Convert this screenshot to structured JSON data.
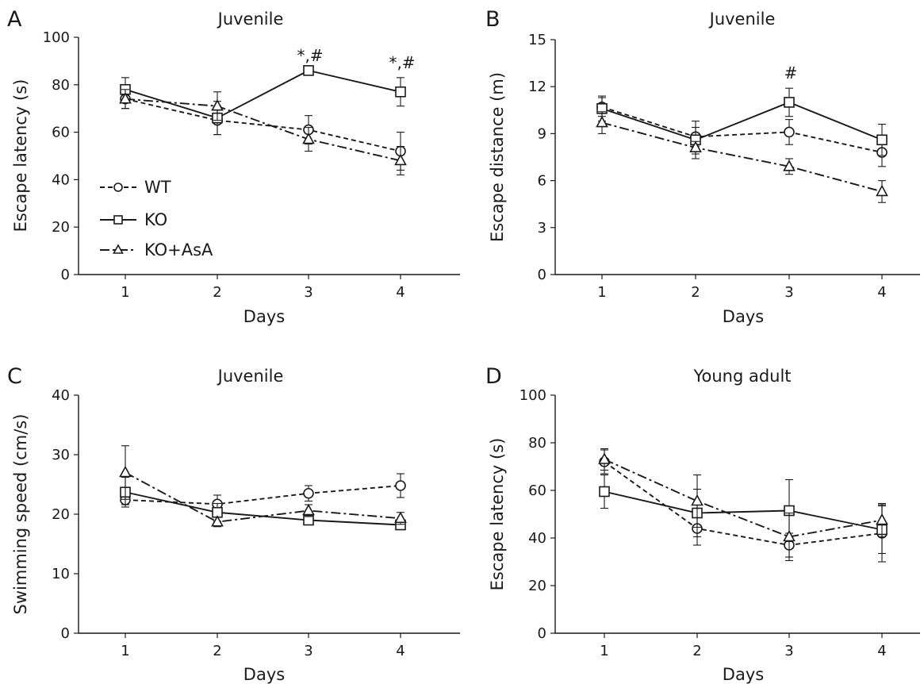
{
  "figure": {
    "legend": {
      "entries": [
        {
          "label": "WT",
          "marker": "circle",
          "dash": "dashed"
        },
        {
          "label": "KO",
          "marker": "square",
          "dash": "solid"
        },
        {
          "label": "KO+AsA",
          "marker": "triangle",
          "dash": "dashdot"
        }
      ],
      "placement": "lower-left of panel A"
    }
  },
  "chart_data": [
    {
      "type": "line",
      "panel": "A",
      "title": "Juvenile",
      "xlabel": "Days",
      "ylabel": "Escape latency (s)",
      "x": [
        1,
        2,
        3,
        4
      ],
      "xticks": [
        "1",
        "2",
        "3",
        "4"
      ],
      "ylim": [
        0,
        100
      ],
      "yticks": [
        "0",
        "20",
        "40",
        "60",
        "80",
        "100"
      ],
      "grid": false,
      "series": [
        {
          "name": "WT",
          "marker": "circle",
          "dash": "dashed",
          "values": [
            74,
            65,
            61,
            52
          ],
          "errors": [
            4,
            6,
            6,
            8
          ]
        },
        {
          "name": "KO",
          "marker": "square",
          "dash": "solid",
          "values": [
            78,
            66,
            86,
            77
          ],
          "errors": [
            5,
            7,
            0,
            6
          ]
        },
        {
          "name": "KO+AsA",
          "marker": "triangle",
          "dash": "dashdot",
          "values": [
            74,
            71,
            57,
            48
          ],
          "errors": [
            4,
            6,
            5,
            6
          ]
        }
      ],
      "annotations": [
        {
          "x": 3,
          "text": "*,#"
        },
        {
          "x": 4,
          "text": "*,#"
        }
      ]
    },
    {
      "type": "line",
      "panel": "B",
      "title": "Juvenile",
      "xlabel": "Days",
      "ylabel": "Escape distance (m)",
      "x": [
        1,
        2,
        3,
        4
      ],
      "xticks": [
        "1",
        "2",
        "3",
        "4"
      ],
      "ylim": [
        0,
        15
      ],
      "yticks": [
        "0",
        "3",
        "6",
        "9",
        "12",
        "15"
      ],
      "grid": false,
      "series": [
        {
          "name": "WT",
          "marker": "circle",
          "dash": "dashed",
          "values": [
            10.7,
            8.8,
            9.1,
            7.8
          ],
          "errors": [
            0.6,
            0.6,
            0.8,
            0.9
          ]
        },
        {
          "name": "KO",
          "marker": "square",
          "dash": "solid",
          "values": [
            10.6,
            8.6,
            11.0,
            8.6
          ],
          "errors": [
            0.8,
            1.2,
            0.9,
            1.0
          ]
        },
        {
          "name": "KO+AsA",
          "marker": "triangle",
          "dash": "dashdot",
          "values": [
            9.7,
            8.1,
            6.9,
            5.3
          ],
          "errors": [
            0.7,
            0.4,
            0.5,
            0.7
          ]
        }
      ],
      "annotations": [
        {
          "x": 3,
          "text": "#"
        }
      ]
    },
    {
      "type": "line",
      "panel": "C",
      "title": "Juvenile",
      "xlabel": "Days",
      "ylabel": "Swimming speed (cm/s)",
      "x": [
        1,
        2,
        3,
        4
      ],
      "xticks": [
        "1",
        "2",
        "3",
        "4"
      ],
      "ylim": [
        0,
        40
      ],
      "yticks": [
        "0",
        "10",
        "20",
        "30",
        "40"
      ],
      "grid": false,
      "series": [
        {
          "name": "WT",
          "marker": "circle",
          "dash": "dashed",
          "values": [
            22.4,
            21.7,
            23.5,
            24.8
          ],
          "errors": [
            0.8,
            1.5,
            1.3,
            2.0
          ]
        },
        {
          "name": "KO",
          "marker": "square",
          "dash": "solid",
          "values": [
            23.7,
            20.3,
            19.0,
            18.2
          ],
          "errors": [
            2.5,
            1.5,
            0.8,
            0.8
          ]
        },
        {
          "name": "KO+AsA",
          "marker": "triangle",
          "dash": "dashdot",
          "values": [
            27.0,
            18.7,
            20.6,
            19.3
          ],
          "errors": [
            4.5,
            0.8,
            1.0,
            1.0
          ]
        }
      ],
      "annotations": []
    },
    {
      "type": "line",
      "panel": "D",
      "title": "Young adult",
      "xlabel": "Days",
      "ylabel": "Escape latency (s)",
      "x": [
        1,
        2,
        3,
        4
      ],
      "xticks": [
        "1",
        "2",
        "3",
        "4"
      ],
      "ylim": [
        0,
        100
      ],
      "yticks": [
        "0",
        "20",
        "40",
        "60",
        "80",
        "100"
      ],
      "grid": false,
      "series": [
        {
          "name": "WT",
          "marker": "circle",
          "dash": "dashed",
          "values": [
            72,
            44,
            37,
            42
          ],
          "errors": [
            5,
            7,
            5,
            12
          ]
        },
        {
          "name": "KO",
          "marker": "square",
          "dash": "solid",
          "values": [
            59.5,
            50.5,
            51.5,
            43.5
          ],
          "errors": [
            7,
            10,
            13,
            10
          ]
        },
        {
          "name": "KO+AsA",
          "marker": "triangle",
          "dash": "dashdot",
          "values": [
            73,
            55.5,
            40.5,
            47.5
          ],
          "errors": [
            4.5,
            11,
            10,
            7
          ]
        }
      ],
      "annotations": []
    }
  ]
}
